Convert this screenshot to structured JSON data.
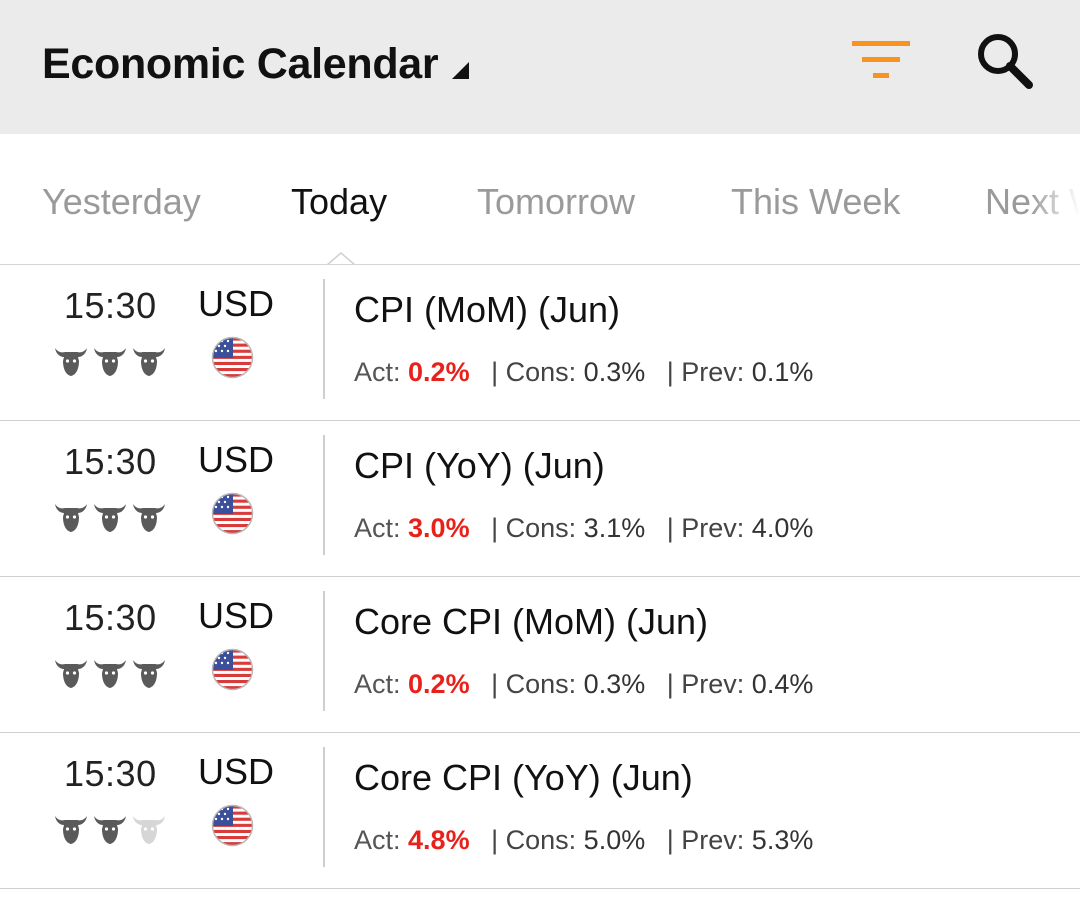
{
  "header": {
    "title": "Economic Calendar",
    "filter_icon": "filter-icon",
    "search_icon": "search-icon",
    "accent_color": "#f7931e"
  },
  "tabs": [
    {
      "label": "Yesterday",
      "active": false
    },
    {
      "label": "Today",
      "active": true
    },
    {
      "label": "Tomorrow",
      "active": false
    },
    {
      "label": "This Week",
      "active": false
    },
    {
      "label": "Next W",
      "active": false
    }
  ],
  "labels": {
    "act": "Act:",
    "cons": "| Cons:",
    "prev": "| Prev:"
  },
  "colors": {
    "actual_value": "#e8221b",
    "bull_active": "#5a5a5a",
    "bull_inactive": "#d6d6d6"
  },
  "events": [
    {
      "time": "15:30",
      "currency": "USD",
      "importance": 3,
      "event": "CPI (MoM) (Jun)",
      "actual": "0.2%",
      "consensus": "0.3%",
      "previous": "0.1%"
    },
    {
      "time": "15:30",
      "currency": "USD",
      "importance": 3,
      "event": "CPI (YoY) (Jun)",
      "actual": "3.0%",
      "consensus": "3.1%",
      "previous": "4.0%"
    },
    {
      "time": "15:30",
      "currency": "USD",
      "importance": 3,
      "event": "Core CPI (MoM) (Jun)",
      "actual": "0.2%",
      "consensus": "0.3%",
      "previous": "0.4%"
    },
    {
      "time": "15:30",
      "currency": "USD",
      "importance": 2,
      "event": "Core CPI (YoY) (Jun)",
      "actual": "4.8%",
      "consensus": "5.0%",
      "previous": "5.3%"
    }
  ]
}
